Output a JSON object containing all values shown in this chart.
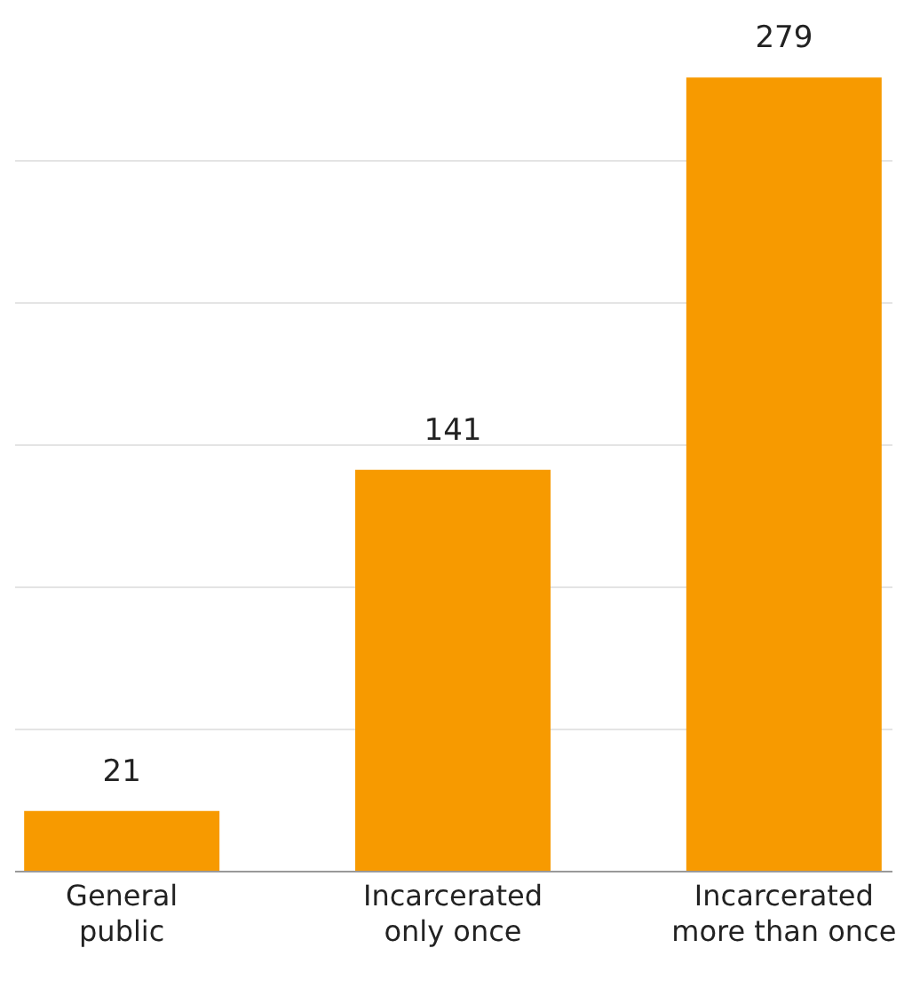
{
  "chart_data": {
    "type": "bar",
    "categories": [
      "General public",
      "Incarcerated only once",
      "Incarcerated more than once"
    ],
    "values": [
      21,
      141,
      279
    ],
    "color": "#f79a00",
    "data_labels": true,
    "yticks": [
      {
        "value": 0,
        "label": null
      },
      {
        "value": 50,
        "label": null
      },
      {
        "value": 100,
        "label": null
      },
      {
        "value": 150,
        "label": null
      },
      {
        "value": 200,
        "label": null
      },
      {
        "value": 250,
        "label": null
      }
    ],
    "grid": "y",
    "tick_labels": "x"
  }
}
